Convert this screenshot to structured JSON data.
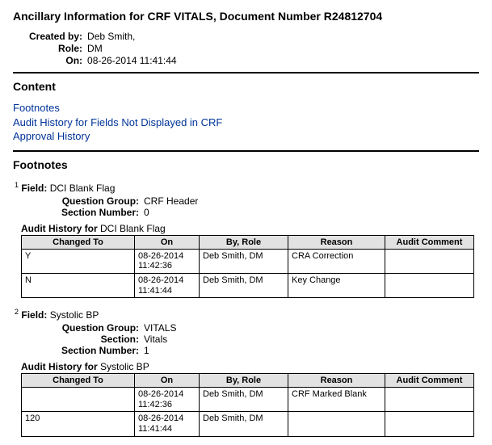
{
  "title": "Ancillary Information for CRF VITALS, Document Number R24812704",
  "meta": {
    "created_by_label": "Created by:",
    "created_by_value": "Deb Smith,",
    "role_label": "Role:",
    "role_value": "DM",
    "on_label": "On:",
    "on_value": "08-26-2014 11:41:44"
  },
  "content_heading": "Content",
  "links": {
    "footnotes": "Footnotes",
    "audit_history": "Audit History for Fields Not Displayed in CRF",
    "approval_history": "Approval History"
  },
  "footnotes_heading": "Footnotes",
  "fields": [
    {
      "index": "1",
      "label_prefix": "Field:",
      "name": "DCI Blank Flag",
      "meta_rows": [
        {
          "label": "Question Group:",
          "value": "CRF Header"
        },
        {
          "label": "Section Number:",
          "value": "0"
        }
      ],
      "audit_title_prefix": "Audit History for",
      "audit_title_subject": "DCI Blank Flag",
      "columns": [
        "Changed To",
        "On",
        "By, Role",
        "Reason",
        "Audit Comment"
      ],
      "rows": [
        {
          "changed": "Y",
          "on1": "08-26-2014",
          "on2": "11:42:36",
          "by": "Deb Smith, DM",
          "reason": "CRA Correction",
          "comment": ""
        },
        {
          "changed": "N",
          "on1": "08-26-2014",
          "on2": "11:41:44",
          "by": "Deb Smith, DM",
          "reason": "Key Change",
          "comment": ""
        }
      ]
    },
    {
      "index": "2",
      "label_prefix": "Field:",
      "name": "Systolic BP",
      "meta_rows": [
        {
          "label": "Question Group:",
          "value": "VITALS"
        },
        {
          "label": "Section:",
          "value": "Vitals"
        },
        {
          "label": "Section Number:",
          "value": "1"
        }
      ],
      "audit_title_prefix": "Audit History for",
      "audit_title_subject": "Systolic BP",
      "columns": [
        "Changed To",
        "On",
        "By, Role",
        "Reason",
        "Audit Comment"
      ],
      "rows": [
        {
          "changed": "",
          "on1": "08-26-2014",
          "on2": "11:42:36",
          "by": "Deb Smith, DM",
          "reason": "CRF Marked Blank",
          "comment": ""
        },
        {
          "changed": "120",
          "on1": "08-26-2014",
          "on2": "11:41:44",
          "by": "Deb Smith, DM",
          "reason": "",
          "comment": ""
        }
      ]
    }
  ]
}
